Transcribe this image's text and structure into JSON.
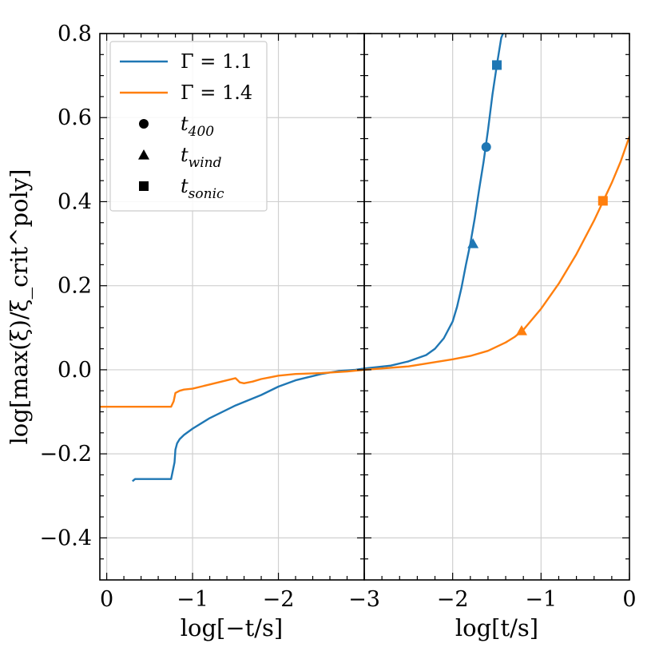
{
  "chart_data": {
    "type": "line",
    "ylabel": "log[max(ξ)/ξ_crit^poly]",
    "ylim": [
      -0.5,
      0.8
    ],
    "yticks": [
      -0.4,
      -0.2,
      0.0,
      0.2,
      0.4,
      0.6,
      0.8
    ],
    "ytick_labels": [
      "−0.4",
      "−0.2",
      "0.0",
      "0.2",
      "0.4",
      "0.6",
      "0.8"
    ],
    "panels": [
      {
        "name": "left",
        "xlabel": "log[−t/s]",
        "xlim": [
          0.08,
          -3
        ],
        "xticks": [
          0,
          -1,
          -2,
          -3
        ],
        "xtick_labels": [
          "0",
          "−1",
          "−2",
          "−3"
        ]
      },
      {
        "name": "right",
        "xlabel": "log[t/s]",
        "xlim": [
          -3,
          0
        ],
        "xticks": [
          -2,
          -1,
          0
        ],
        "xtick_labels": [
          "−2",
          "−1",
          "0"
        ]
      }
    ],
    "series": [
      {
        "name": "Γ = 1.1",
        "color": "#1f77b4",
        "pre_bounce": {
          "x": [
            -0.3,
            -0.33,
            -0.5,
            -0.6,
            -0.7,
            -0.75,
            -0.79,
            -0.8,
            -0.82,
            -0.85,
            -0.9,
            -1.0,
            -1.2,
            -1.5,
            -1.8,
            -2.0,
            -2.2,
            -2.5,
            -2.7,
            -2.9,
            -3.0
          ],
          "y": [
            -0.265,
            -0.26,
            -0.26,
            -0.26,
            -0.26,
            -0.26,
            -0.22,
            -0.19,
            -0.175,
            -0.165,
            -0.155,
            -0.14,
            -0.115,
            -0.085,
            -0.06,
            -0.04,
            -0.025,
            -0.01,
            -0.003,
            0.0,
            0.003
          ]
        },
        "post_bounce": {
          "x": [
            -3.0,
            -2.7,
            -2.5,
            -2.3,
            -2.2,
            -2.1,
            -2.0,
            -1.95,
            -1.9,
            -1.85,
            -1.8,
            -1.75,
            -1.7,
            -1.65,
            -1.6,
            -1.55,
            -1.5,
            -1.45,
            -1.43
          ],
          "y": [
            0.003,
            0.01,
            0.02,
            0.035,
            0.05,
            0.075,
            0.115,
            0.15,
            0.195,
            0.25,
            0.3,
            0.36,
            0.43,
            0.495,
            0.57,
            0.655,
            0.725,
            0.79,
            0.8
          ]
        },
        "markers": [
          {
            "kind": "t_400",
            "x": -1.62,
            "y": 0.53
          },
          {
            "kind": "t_wind",
            "x": -1.77,
            "y": 0.3
          },
          {
            "kind": "t_sonic",
            "x": -1.5,
            "y": 0.725
          }
        ]
      },
      {
        "name": "Γ = 1.4",
        "color": "#ff7f0e",
        "pre_bounce": {
          "x": [
            0.08,
            -0.2,
            -0.5,
            -0.7,
            -0.75,
            -0.78,
            -0.8,
            -0.85,
            -0.9,
            -1.0,
            -1.2,
            -1.4,
            -1.5,
            -1.55,
            -1.6,
            -1.7,
            -1.8,
            -1.9,
            -2.0,
            -2.2,
            -2.5,
            -2.8,
            -3.0
          ],
          "y": [
            -0.088,
            -0.088,
            -0.088,
            -0.088,
            -0.088,
            -0.075,
            -0.055,
            -0.05,
            -0.047,
            -0.045,
            -0.035,
            -0.025,
            -0.02,
            -0.03,
            -0.032,
            -0.028,
            -0.022,
            -0.018,
            -0.014,
            -0.01,
            -0.008,
            -0.004,
            0.0
          ]
        },
        "post_bounce": {
          "x": [
            -3.0,
            -2.5,
            -2.0,
            -1.8,
            -1.6,
            -1.4,
            -1.3,
            -1.2,
            -1.0,
            -0.8,
            -0.6,
            -0.4,
            -0.3,
            -0.2,
            -0.1,
            0.0
          ],
          "y": [
            0.0,
            0.008,
            0.025,
            0.033,
            0.045,
            0.065,
            0.078,
            0.095,
            0.145,
            0.205,
            0.275,
            0.355,
            0.4,
            0.445,
            0.495,
            0.555
          ]
        },
        "markers": [
          {
            "kind": "t_wind",
            "x": -1.22,
            "y": 0.093
          },
          {
            "kind": "t_sonic",
            "x": -0.3,
            "y": 0.402
          }
        ]
      }
    ],
    "legend": {
      "placement": "upper-left",
      "entries": [
        {
          "kind": "line",
          "color": "#1f77b4",
          "label_main": "Γ = 1.1",
          "label_sub": ""
        },
        {
          "kind": "line",
          "color": "#ff7f0e",
          "label_main": "Γ = 1.4",
          "label_sub": ""
        },
        {
          "kind": "circle",
          "color": "#000000",
          "label_main": "t",
          "label_sub": "400"
        },
        {
          "kind": "triangle",
          "color": "#000000",
          "label_main": "t",
          "label_sub": "wind"
        },
        {
          "kind": "square",
          "color": "#000000",
          "label_main": "t",
          "label_sub": "sonic"
        }
      ]
    },
    "grid": true
  }
}
